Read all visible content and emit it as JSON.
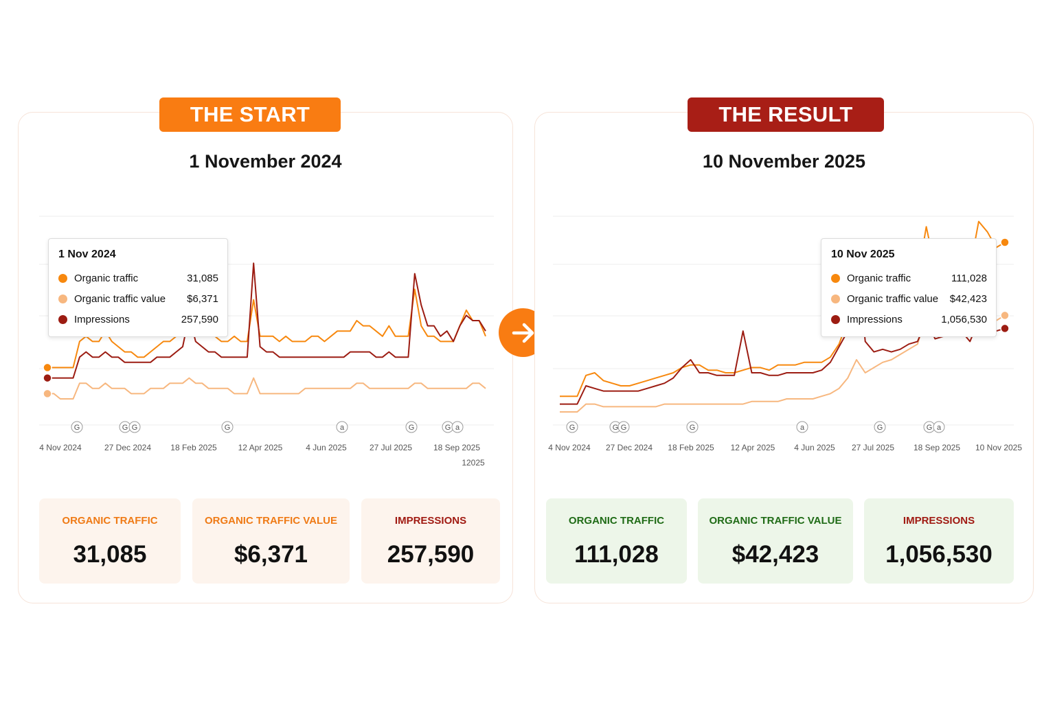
{
  "colors": {
    "organic_traffic": "#f7880e",
    "organic_traffic_value": "#f7b77f",
    "impressions": "#9c1c12",
    "start_accent": "#f97c12",
    "result_accent": "#a81e16",
    "start_label": "#ef7a15",
    "result_label_green": "#1f6b16",
    "impressions_label": "#a01a12"
  },
  "arrow": {
    "icon": "arrow-right-icon"
  },
  "panels": [
    {
      "ribbon": "THE START",
      "title": "1 November 2024",
      "tooltip": {
        "date": "1 Nov 2024",
        "rows": [
          {
            "label": "Organic traffic",
            "value": "31,085"
          },
          {
            "label": "Organic traffic value",
            "value": "$6,371"
          },
          {
            "label": "Impressions",
            "value": "257,590"
          }
        ]
      },
      "kpis": [
        {
          "label": "ORGANIC TRAFFIC",
          "value": "31,085"
        },
        {
          "label": "ORGANIC TRAFFIC VALUE",
          "value": "$6,371"
        },
        {
          "label": "IMPRESSIONS",
          "value": "257,590"
        }
      ]
    },
    {
      "ribbon": "THE RESULT",
      "title": "10 November 2025",
      "tooltip": {
        "date": "10 Nov 2025",
        "rows": [
          {
            "label": "Organic traffic",
            "value": "111,028"
          },
          {
            "label": "Organic traffic value",
            "value": "$42,423"
          },
          {
            "label": "Impressions",
            "value": "1,056,530"
          }
        ]
      },
      "kpis": [
        {
          "label": "ORGANIC TRAFFIC",
          "value": "111,028"
        },
        {
          "label": "ORGANIC TRAFFIC VALUE",
          "value": "$42,423"
        },
        {
          "label": "IMPRESSIONS",
          "value": "1,056,530"
        }
      ]
    }
  ],
  "chart_data": [
    {
      "type": "line",
      "x_tick_labels": [
        "4 Nov 2024",
        "27 Dec 2024",
        "18 Feb 2025",
        "12 Apr 2025",
        "4 Jun 2025",
        "27 Jul 2025",
        "18 Sep 2025",
        "12025"
      ],
      "event_markers": [
        "G",
        "G",
        "G",
        "G",
        "a",
        "G",
        "G",
        "a"
      ],
      "grid": true,
      "series": [
        {
          "name": "Organic traffic",
          "values": [
            11,
            11,
            11,
            11,
            11,
            16,
            17,
            16,
            16,
            18,
            16,
            15,
            14,
            14,
            13,
            13,
            14,
            15,
            16,
            16,
            17,
            19,
            26,
            19,
            18,
            17,
            17,
            16,
            16,
            17,
            16,
            16,
            24,
            17,
            17,
            17,
            16,
            17,
            16,
            16,
            16,
            17,
            17,
            16,
            17,
            18,
            18,
            18,
            20,
            19,
            19,
            18,
            17,
            19,
            17,
            17,
            17,
            26,
            19,
            17,
            17,
            16,
            16,
            16,
            19,
            22,
            20,
            20,
            17
          ]
        },
        {
          "name": "Organic traffic value",
          "values": [
            6,
            6,
            5,
            5,
            5,
            8,
            8,
            7,
            7,
            8,
            7,
            7,
            7,
            6,
            6,
            6,
            7,
            7,
            7,
            8,
            8,
            8,
            9,
            8,
            8,
            7,
            7,
            7,
            7,
            6,
            6,
            6,
            9,
            6,
            6,
            6,
            6,
            6,
            6,
            6,
            7,
            7,
            7,
            7,
            7,
            7,
            7,
            7,
            8,
            8,
            7,
            7,
            7,
            7,
            7,
            7,
            7,
            8,
            8,
            7,
            7,
            7,
            7,
            7,
            7,
            7,
            8,
            8,
            7
          ]
        },
        {
          "name": "Impressions",
          "values": [
            9,
            9,
            9,
            9,
            9,
            13,
            14,
            13,
            13,
            14,
            13,
            13,
            12,
            12,
            12,
            12,
            12,
            13,
            13,
            13,
            14,
            15,
            21,
            16,
            15,
            14,
            14,
            13,
            13,
            13,
            13,
            13,
            31,
            15,
            14,
            14,
            13,
            13,
            13,
            13,
            13,
            13,
            13,
            13,
            13,
            13,
            13,
            14,
            14,
            14,
            14,
            13,
            13,
            14,
            13,
            13,
            13,
            29,
            23,
            19,
            19,
            17,
            18,
            16,
            19,
            21,
            20,
            20,
            18
          ]
        }
      ]
    },
    {
      "type": "line",
      "x_tick_labels": [
        "4 Nov 2024",
        "27 Dec 2024",
        "18 Feb 2025",
        "12 Apr 2025",
        "4 Jun 2025",
        "27 Jul 2025",
        "18 Sep 2025",
        "10 Nov 2025"
      ],
      "event_markers": [
        "G",
        "G",
        "G",
        "G",
        "a",
        "G",
        "G",
        "a"
      ],
      "grid": true,
      "series": [
        {
          "name": "Organic traffic",
          "values": [
            11,
            11,
            11,
            19,
            20,
            17,
            16,
            15,
            15,
            16,
            17,
            18,
            19,
            20,
            22,
            23,
            23,
            21,
            21,
            20,
            20,
            21,
            22,
            22,
            21,
            23,
            23,
            23,
            24,
            24,
            24,
            26,
            31,
            40,
            61,
            42,
            44,
            47,
            46,
            51,
            52,
            56,
            76,
            60,
            62,
            70,
            68,
            60,
            78,
            74,
            68,
            70
          ]
        },
        {
          "name": "Organic traffic value",
          "values": [
            5,
            5,
            5,
            8,
            8,
            7,
            7,
            7,
            7,
            7,
            7,
            7,
            8,
            8,
            8,
            8,
            8,
            8,
            8,
            8,
            8,
            8,
            9,
            9,
            9,
            9,
            10,
            10,
            10,
            10,
            11,
            12,
            14,
            18,
            25,
            20,
            22,
            24,
            25,
            27,
            29,
            31,
            42,
            35,
            37,
            40,
            42,
            38,
            45,
            43,
            40,
            42
          ]
        },
        {
          "name": "Impressions",
          "values": [
            8,
            8,
            8,
            15,
            14,
            13,
            13,
            13,
            13,
            13,
            14,
            15,
            16,
            18,
            22,
            25,
            20,
            20,
            19,
            19,
            19,
            36,
            20,
            20,
            19,
            19,
            20,
            20,
            20,
            20,
            21,
            24,
            30,
            36,
            68,
            32,
            28,
            29,
            28,
            29,
            31,
            32,
            40,
            33,
            34,
            36,
            36,
            32,
            40,
            38,
            36,
            37
          ]
        }
      ]
    }
  ]
}
